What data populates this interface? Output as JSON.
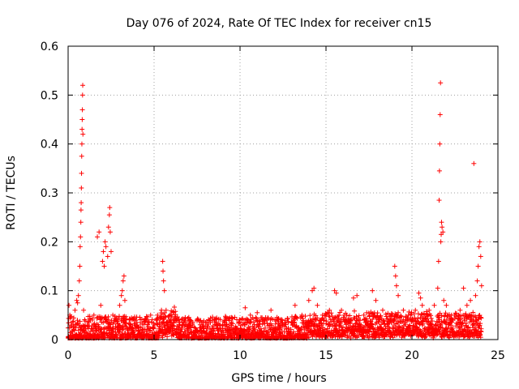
{
  "chart_data": {
    "type": "scatter",
    "title": "Day 076 of 2024, Rate Of TEC Index for receiver cn15",
    "xlabel": "GPS time / hours",
    "ylabel": "ROTI / TECUs",
    "xlim": [
      0,
      25
    ],
    "ylim": [
      0,
      0.6
    ],
    "xticks": [
      0,
      5,
      10,
      15,
      20,
      25
    ],
    "xtick_labels": [
      "0",
      "5",
      "10",
      "15",
      "20",
      "25"
    ],
    "yticks": [
      0,
      0.1,
      0.2,
      0.3,
      0.4,
      0.5,
      0.6
    ],
    "ytick_labels": [
      "0",
      "0.1",
      "0.2",
      "0.3",
      "0.4",
      "0.5",
      "0.6"
    ],
    "grid": true,
    "marker": "+",
    "color": "#ff0000",
    "series": [
      {
        "name": "ROTI",
        "points": [
          [
            0.05,
            0.07
          ],
          [
            0.1,
            0.05
          ],
          [
            0.2,
            0.03
          ],
          [
            0.4,
            0.06
          ],
          [
            0.5,
            0.08
          ],
          [
            0.55,
            0.075
          ],
          [
            0.6,
            0.09
          ],
          [
            0.65,
            0.12
          ],
          [
            0.68,
            0.15
          ],
          [
            0.7,
            0.19
          ],
          [
            0.72,
            0.21
          ],
          [
            0.74,
            0.24
          ],
          [
            0.75,
            0.265
          ],
          [
            0.76,
            0.28
          ],
          [
            0.77,
            0.31
          ],
          [
            0.78,
            0.34
          ],
          [
            0.79,
            0.375
          ],
          [
            0.8,
            0.4
          ],
          [
            0.81,
            0.43
          ],
          [
            0.82,
            0.45
          ],
          [
            0.83,
            0.47
          ],
          [
            0.84,
            0.5
          ],
          [
            0.85,
            0.52
          ],
          [
            0.86,
            0.42
          ],
          [
            0.9,
            0.06
          ],
          [
            1.3,
            0.04
          ],
          [
            1.5,
            0.05
          ],
          [
            1.7,
            0.21
          ],
          [
            1.8,
            0.22
          ],
          [
            1.9,
            0.07
          ],
          [
            2.0,
            0.16
          ],
          [
            2.05,
            0.18
          ],
          [
            2.1,
            0.15
          ],
          [
            2.15,
            0.2
          ],
          [
            2.2,
            0.19
          ],
          [
            2.3,
            0.17
          ],
          [
            2.35,
            0.23
          ],
          [
            2.4,
            0.255
          ],
          [
            2.42,
            0.27
          ],
          [
            2.45,
            0.22
          ],
          [
            2.5,
            0.18
          ],
          [
            2.6,
            0.05
          ],
          [
            2.8,
            0.04
          ],
          [
            3.0,
            0.07
          ],
          [
            3.1,
            0.09
          ],
          [
            3.15,
            0.1
          ],
          [
            3.2,
            0.12
          ],
          [
            3.25,
            0.13
          ],
          [
            3.3,
            0.08
          ],
          [
            3.6,
            0.04
          ],
          [
            4.0,
            0.035
          ],
          [
            4.5,
            0.04
          ],
          [
            4.8,
            0.05
          ],
          [
            5.2,
            0.05
          ],
          [
            5.5,
            0.16
          ],
          [
            5.52,
            0.14
          ],
          [
            5.55,
            0.12
          ],
          [
            5.6,
            0.1
          ],
          [
            5.7,
            0.06
          ],
          [
            6.0,
            0.05
          ],
          [
            6.5,
            0.035
          ],
          [
            7.0,
            0.03
          ],
          [
            7.5,
            0.04
          ],
          [
            8.0,
            0.035
          ],
          [
            8.5,
            0.04
          ],
          [
            9.0,
            0.03
          ],
          [
            9.5,
            0.035
          ],
          [
            10.0,
            0.04
          ],
          [
            10.3,
            0.065
          ],
          [
            10.6,
            0.05
          ],
          [
            11.0,
            0.055
          ],
          [
            11.3,
            0.04
          ],
          [
            11.8,
            0.06
          ],
          [
            12.2,
            0.04
          ],
          [
            12.8,
            0.035
          ],
          [
            13.2,
            0.07
          ],
          [
            13.6,
            0.05
          ],
          [
            14.0,
            0.08
          ],
          [
            14.2,
            0.1
          ],
          [
            14.3,
            0.105
          ],
          [
            14.5,
            0.07
          ],
          [
            14.8,
            0.05
          ],
          [
            15.2,
            0.06
          ],
          [
            15.5,
            0.1
          ],
          [
            15.6,
            0.095
          ],
          [
            15.9,
            0.06
          ],
          [
            16.2,
            0.05
          ],
          [
            16.6,
            0.085
          ],
          [
            16.8,
            0.09
          ],
          [
            17.2,
            0.05
          ],
          [
            17.7,
            0.1
          ],
          [
            17.9,
            0.08
          ],
          [
            18.3,
            0.06
          ],
          [
            18.7,
            0.05
          ],
          [
            19.0,
            0.15
          ],
          [
            19.05,
            0.13
          ],
          [
            19.1,
            0.11
          ],
          [
            19.2,
            0.09
          ],
          [
            19.5,
            0.06
          ],
          [
            19.8,
            0.05
          ],
          [
            20.2,
            0.06
          ],
          [
            20.4,
            0.095
          ],
          [
            20.5,
            0.085
          ],
          [
            20.6,
            0.07
          ],
          [
            21.0,
            0.06
          ],
          [
            21.3,
            0.07
          ],
          [
            21.5,
            0.105
          ],
          [
            21.55,
            0.16
          ],
          [
            21.58,
            0.285
          ],
          [
            21.6,
            0.345
          ],
          [
            21.62,
            0.4
          ],
          [
            21.64,
            0.46
          ],
          [
            21.66,
            0.525
          ],
          [
            21.68,
            0.2
          ],
          [
            21.7,
            0.215
          ],
          [
            21.72,
            0.24
          ],
          [
            21.75,
            0.23
          ],
          [
            21.8,
            0.22
          ],
          [
            21.85,
            0.08
          ],
          [
            22.0,
            0.07
          ],
          [
            22.3,
            0.05
          ],
          [
            22.8,
            0.06
          ],
          [
            23.0,
            0.105
          ],
          [
            23.2,
            0.07
          ],
          [
            23.4,
            0.08
          ],
          [
            23.6,
            0.36
          ],
          [
            23.7,
            0.09
          ],
          [
            23.8,
            0.12
          ],
          [
            23.85,
            0.15
          ],
          [
            23.9,
            0.19
          ],
          [
            23.95,
            0.2
          ],
          [
            24.0,
            0.17
          ],
          [
            24.05,
            0.11
          ]
        ]
      }
    ]
  }
}
